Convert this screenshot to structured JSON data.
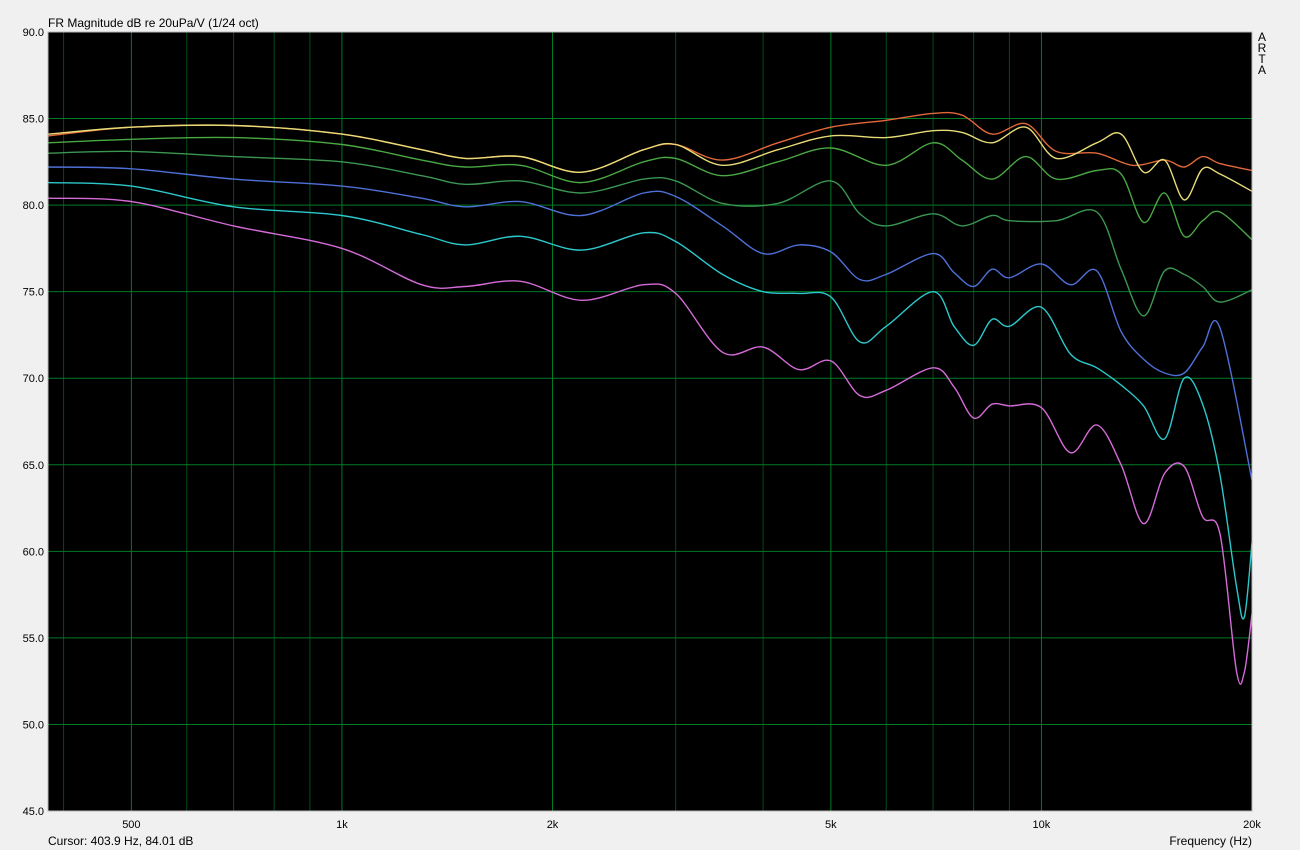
{
  "header": {
    "title": "FR Magnitude dB re 20uPa/V (1/24 oct)"
  },
  "footer": {
    "cursor_readout": "Cursor: 403.9 Hz, 84.01 dB",
    "x_axis_label": "Frequency (Hz)"
  },
  "brand": {
    "letters": [
      "A",
      "R",
      "T",
      "A"
    ]
  },
  "colors": {
    "plot_background": "#000000",
    "grid_major": "#007a24",
    "grid_minor": "#004d18",
    "frame": "#b8b8b8"
  },
  "chart_data": {
    "type": "line",
    "title": "FR Magnitude dB re 20uPa/V (1/24 oct)",
    "xlabel": "Frequency (Hz)",
    "ylabel": "",
    "x_scale": "log",
    "xlim": [
      380,
      20000
    ],
    "ylim": [
      45,
      90
    ],
    "grid": true,
    "y_ticks": [
      "90.0",
      "85.0",
      "80.0",
      "75.0",
      "70.0",
      "65.0",
      "60.0",
      "55.0",
      "50.0",
      "45.0"
    ],
    "y_tick_values": [
      90,
      85,
      80,
      75,
      70,
      65,
      60,
      55,
      50,
      45
    ],
    "x_ticks": [
      {
        "value": 500,
        "label": "500"
      },
      {
        "value": 1000,
        "label": "1k"
      },
      {
        "value": 2000,
        "label": "2k"
      },
      {
        "value": 5000,
        "label": "5k"
      },
      {
        "value": 10000,
        "label": "10k"
      },
      {
        "value": 20000,
        "label": "20k"
      }
    ],
    "series": [
      {
        "color": "#e0683a",
        "points": [
          [
            380,
            84.0
          ],
          [
            500,
            84.5
          ],
          [
            700,
            84.6
          ],
          [
            1000,
            84.1
          ],
          [
            1300,
            83.2
          ],
          [
            1500,
            82.7
          ],
          [
            1800,
            82.8
          ],
          [
            2200,
            81.9
          ],
          [
            2700,
            83.2
          ],
          [
            3000,
            83.5
          ],
          [
            3500,
            82.6
          ],
          [
            4200,
            83.6
          ],
          [
            5000,
            84.5
          ],
          [
            6000,
            84.9
          ],
          [
            7000,
            85.3
          ],
          [
            7700,
            85.2
          ],
          [
            8500,
            84.1
          ],
          [
            9500,
            84.7
          ],
          [
            10500,
            83.1
          ],
          [
            12000,
            83.0
          ],
          [
            13500,
            82.3
          ],
          [
            15000,
            82.6
          ],
          [
            16000,
            82.2
          ],
          [
            17000,
            82.8
          ],
          [
            18000,
            82.4
          ],
          [
            20000,
            82.0
          ]
        ]
      },
      {
        "color": "#e8dc78",
        "points": [
          [
            380,
            84.1
          ],
          [
            500,
            84.5
          ],
          [
            700,
            84.6
          ],
          [
            1000,
            84.1
          ],
          [
            1300,
            83.2
          ],
          [
            1500,
            82.7
          ],
          [
            1800,
            82.8
          ],
          [
            2200,
            81.9
          ],
          [
            2700,
            83.2
          ],
          [
            3000,
            83.5
          ],
          [
            3500,
            82.3
          ],
          [
            4200,
            83.2
          ],
          [
            5000,
            84.0
          ],
          [
            6000,
            83.9
          ],
          [
            7000,
            84.3
          ],
          [
            7700,
            84.2
          ],
          [
            8500,
            83.6
          ],
          [
            9500,
            84.5
          ],
          [
            10500,
            82.7
          ],
          [
            12000,
            83.6
          ],
          [
            13000,
            84.1
          ],
          [
            14000,
            81.9
          ],
          [
            15000,
            82.6
          ],
          [
            16000,
            80.3
          ],
          [
            17000,
            82.1
          ],
          [
            18000,
            81.8
          ],
          [
            20000,
            80.8
          ]
        ]
      },
      {
        "color": "#4aa843",
        "points": [
          [
            380,
            83.6
          ],
          [
            500,
            83.8
          ],
          [
            700,
            83.9
          ],
          [
            1000,
            83.5
          ],
          [
            1300,
            82.6
          ],
          [
            1500,
            82.2
          ],
          [
            1800,
            82.3
          ],
          [
            2200,
            81.3
          ],
          [
            2700,
            82.5
          ],
          [
            3000,
            82.7
          ],
          [
            3500,
            81.7
          ],
          [
            4200,
            82.5
          ],
          [
            5000,
            83.3
          ],
          [
            6000,
            82.3
          ],
          [
            7000,
            83.6
          ],
          [
            7700,
            82.6
          ],
          [
            8500,
            81.5
          ],
          [
            9500,
            82.8
          ],
          [
            10500,
            81.5
          ],
          [
            12000,
            82.0
          ],
          [
            13000,
            81.8
          ],
          [
            14000,
            79.0
          ],
          [
            15000,
            80.7
          ],
          [
            16000,
            78.2
          ],
          [
            17000,
            79.1
          ],
          [
            18000,
            79.6
          ],
          [
            20000,
            78.0
          ]
        ]
      },
      {
        "color": "#3a9650",
        "points": [
          [
            380,
            83.0
          ],
          [
            500,
            83.1
          ],
          [
            700,
            82.8
          ],
          [
            1000,
            82.5
          ],
          [
            1300,
            81.7
          ],
          [
            1500,
            81.2
          ],
          [
            1800,
            81.4
          ],
          [
            2200,
            80.7
          ],
          [
            2700,
            81.5
          ],
          [
            3000,
            81.4
          ],
          [
            3500,
            80.1
          ],
          [
            4200,
            80.1
          ],
          [
            5000,
            81.4
          ],
          [
            5500,
            79.5
          ],
          [
            6000,
            78.8
          ],
          [
            7000,
            79.5
          ],
          [
            7700,
            78.8
          ],
          [
            8500,
            79.4
          ],
          [
            9000,
            79.1
          ],
          [
            10500,
            79.1
          ],
          [
            12000,
            79.6
          ],
          [
            13000,
            76.3
          ],
          [
            14000,
            73.6
          ],
          [
            15000,
            76.2
          ],
          [
            16000,
            76.0
          ],
          [
            17000,
            75.3
          ],
          [
            18000,
            74.4
          ],
          [
            20000,
            75.1
          ]
        ]
      },
      {
        "color": "#4e70d8",
        "points": [
          [
            380,
            82.2
          ],
          [
            500,
            82.1
          ],
          [
            700,
            81.5
          ],
          [
            1000,
            81.1
          ],
          [
            1300,
            80.4
          ],
          [
            1500,
            79.9
          ],
          [
            1800,
            80.2
          ],
          [
            2200,
            79.4
          ],
          [
            2700,
            80.7
          ],
          [
            3000,
            80.5
          ],
          [
            3500,
            78.8
          ],
          [
            4000,
            77.2
          ],
          [
            4500,
            77.7
          ],
          [
            5000,
            77.3
          ],
          [
            5500,
            75.7
          ],
          [
            6000,
            76.0
          ],
          [
            7000,
            77.2
          ],
          [
            7500,
            76.1
          ],
          [
            8000,
            75.3
          ],
          [
            8500,
            76.3
          ],
          [
            9000,
            75.8
          ],
          [
            10000,
            76.6
          ],
          [
            11000,
            75.4
          ],
          [
            12000,
            76.2
          ],
          [
            13000,
            72.7
          ],
          [
            14000,
            71.1
          ],
          [
            15000,
            70.3
          ],
          [
            16000,
            70.3
          ],
          [
            17000,
            71.8
          ],
          [
            18000,
            72.9
          ],
          [
            20000,
            64.1
          ]
        ]
      },
      {
        "color": "#2cc8cc",
        "points": [
          [
            380,
            81.3
          ],
          [
            500,
            81.1
          ],
          [
            700,
            79.9
          ],
          [
            1000,
            79.4
          ],
          [
            1300,
            78.3
          ],
          [
            1500,
            77.7
          ],
          [
            1800,
            78.2
          ],
          [
            2200,
            77.4
          ],
          [
            2700,
            78.4
          ],
          [
            3000,
            77.9
          ],
          [
            3500,
            76.0
          ],
          [
            4000,
            75.0
          ],
          [
            4500,
            74.9
          ],
          [
            5000,
            74.7
          ],
          [
            5500,
            72.1
          ],
          [
            6000,
            73.0
          ],
          [
            7000,
            75.0
          ],
          [
            7500,
            73.0
          ],
          [
            8000,
            71.9
          ],
          [
            8500,
            73.4
          ],
          [
            9000,
            73.0
          ],
          [
            10000,
            74.1
          ],
          [
            11000,
            71.4
          ],
          [
            12000,
            70.6
          ],
          [
            13000,
            69.6
          ],
          [
            14000,
            68.4
          ],
          [
            15000,
            66.5
          ],
          [
            16000,
            70.0
          ],
          [
            17000,
            68.5
          ],
          [
            18000,
            64.4
          ],
          [
            19000,
            58.0
          ],
          [
            19500,
            56.2
          ],
          [
            20000,
            60.5
          ]
        ]
      },
      {
        "color": "#d56bd8",
        "points": [
          [
            380,
            80.4
          ],
          [
            500,
            80.2
          ],
          [
            700,
            78.8
          ],
          [
            1000,
            77.5
          ],
          [
            1300,
            75.4
          ],
          [
            1500,
            75.3
          ],
          [
            1800,
            75.6
          ],
          [
            2200,
            74.5
          ],
          [
            2700,
            75.4
          ],
          [
            3000,
            74.9
          ],
          [
            3500,
            71.5
          ],
          [
            4000,
            71.8
          ],
          [
            4500,
            70.5
          ],
          [
            5000,
            71.0
          ],
          [
            5500,
            69.0
          ],
          [
            6000,
            69.3
          ],
          [
            7000,
            70.6
          ],
          [
            7500,
            69.5
          ],
          [
            8000,
            67.7
          ],
          [
            8500,
            68.5
          ],
          [
            9000,
            68.4
          ],
          [
            10000,
            68.3
          ],
          [
            11000,
            65.7
          ],
          [
            12000,
            67.3
          ],
          [
            13000,
            65.0
          ],
          [
            14000,
            61.6
          ],
          [
            15000,
            64.5
          ],
          [
            16000,
            64.9
          ],
          [
            17000,
            62.0
          ],
          [
            18000,
            61.0
          ],
          [
            19000,
            53.1
          ],
          [
            19500,
            53.0
          ],
          [
            20000,
            56.4
          ]
        ]
      }
    ]
  }
}
